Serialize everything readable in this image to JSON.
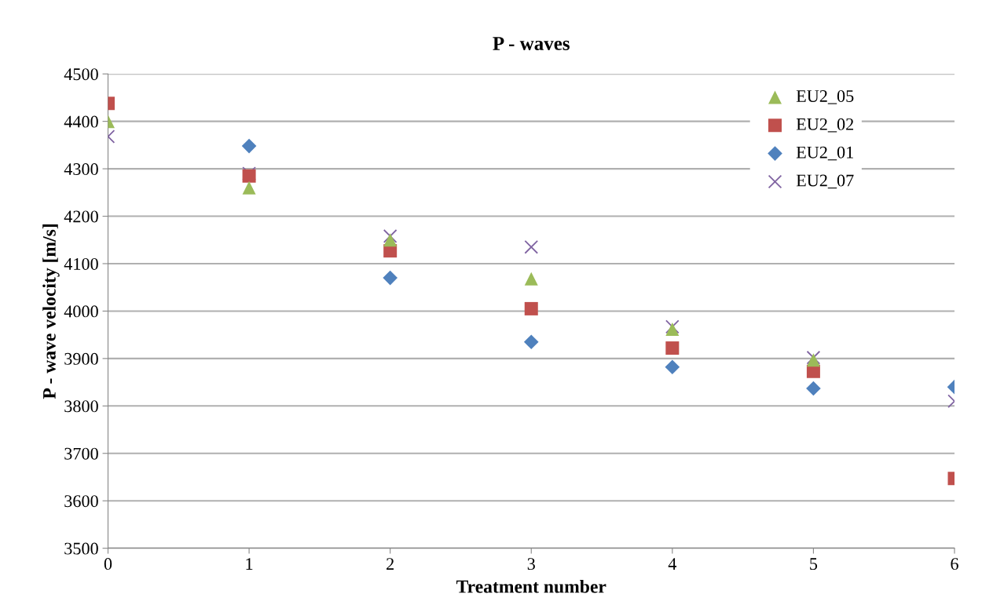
{
  "chart_data": {
    "type": "scatter",
    "title": "P - waves",
    "xlabel": "Treatment number",
    "ylabel": "P - wave velocity [m/s]",
    "x": [
      0,
      1,
      2,
      3,
      4,
      5,
      6
    ],
    "xlim": [
      0,
      6
    ],
    "xticks": [
      0,
      1,
      2,
      3,
      4,
      5,
      6
    ],
    "ylim": [
      3500,
      4500
    ],
    "yticks": [
      3500,
      3600,
      3700,
      3800,
      3900,
      4000,
      4100,
      4200,
      4300,
      4400,
      4500
    ],
    "grid": "y",
    "legend": "top right",
    "series": [
      {
        "name": "EU2_05",
        "color": "#9bbb59",
        "marker": "triangle",
        "values": [
          4400,
          4260,
          4150,
          4068,
          3962,
          3897,
          null
        ]
      },
      {
        "name": "EU2_02",
        "color": "#c0504d",
        "marker": "square",
        "values": [
          4438,
          4285,
          4127,
          4005,
          3922,
          3873,
          3647
        ]
      },
      {
        "name": "EU2_01",
        "color": "#4f81bd",
        "marker": "diamond",
        "values": [
          null,
          4348,
          4070,
          3935,
          3882,
          3837,
          3840
        ]
      },
      {
        "name": "EU2_07",
        "color": "#8064a2",
        "marker": "cross",
        "values": [
          4368,
          4290,
          4158,
          4135,
          3967,
          3902,
          3810
        ]
      }
    ]
  }
}
